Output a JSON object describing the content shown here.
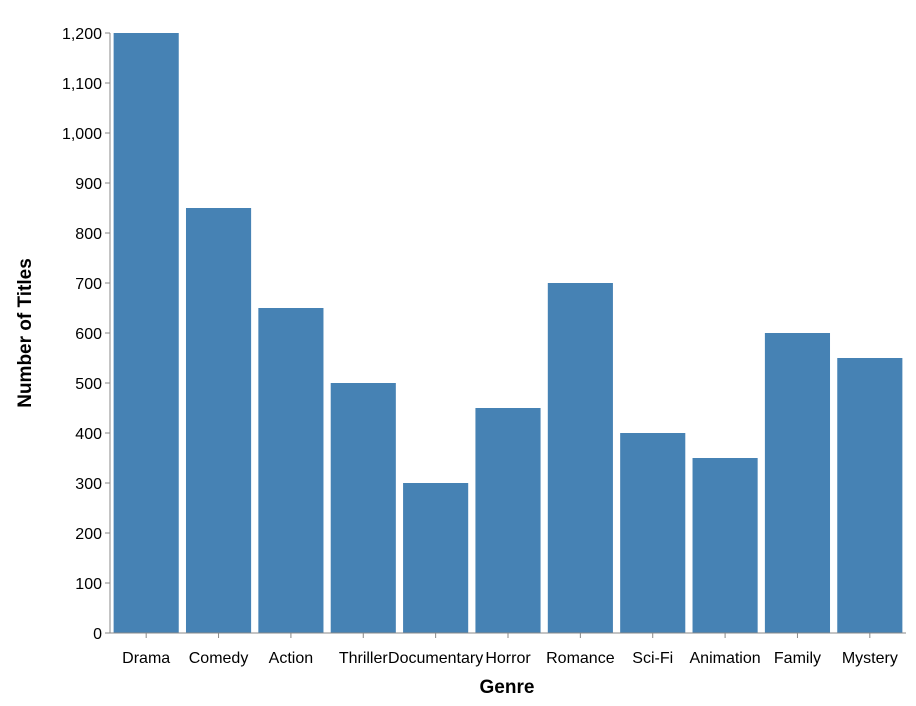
{
  "chart_data": {
    "type": "bar",
    "title": "",
    "xlabel": "Genre",
    "ylabel": "Number of Titles",
    "categories": [
      "Drama",
      "Comedy",
      "Action",
      "Thriller",
      "Documentary",
      "Horror",
      "Romance",
      "Sci-Fi",
      "Animation",
      "Family",
      "Mystery"
    ],
    "values": [
      1200,
      850,
      650,
      500,
      300,
      450,
      700,
      400,
      350,
      600,
      550
    ],
    "ylim": [
      0,
      1200
    ],
    "yticks": [
      "0",
      "100",
      "200",
      "300",
      "400",
      "500",
      "600",
      "700",
      "800",
      "900",
      "1,000",
      "1,100",
      "1,200"
    ],
    "grid": false,
    "bar_color": "#4682b4",
    "axis_color": "#888888"
  }
}
